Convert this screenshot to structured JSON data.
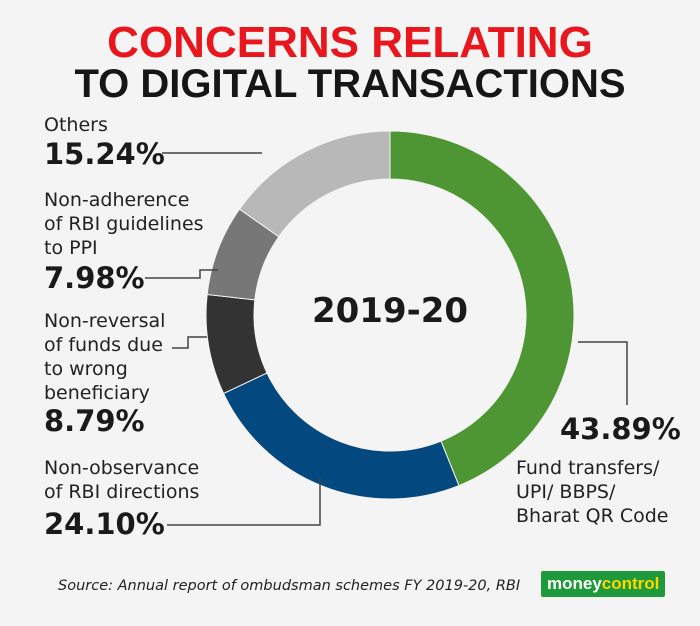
{
  "title_line1": "CONCERNS RELATING",
  "title_line2": "TO DIGITAL TRANSACTIONS",
  "center_label": "2019-20",
  "source": "Source: Annual report of ombudsman schemes FY 2019-20, RBI",
  "brand": {
    "part1": "money",
    "part2": "control"
  },
  "chart_data": {
    "type": "pie",
    "title": "CONCERNS RELATING TO DIGITAL TRANSACTIONS",
    "center_label": "2019-20",
    "slices": [
      {
        "label": "Fund transfers/\nUPI/ BBPS/\nBharat QR Code",
        "value": 43.89,
        "display": "43.89%",
        "color": "#4e9633"
      },
      {
        "label": "Non-observance\nof RBI directions",
        "value": 24.1,
        "display": "24.10%",
        "color": "#03487e"
      },
      {
        "label": "Non-reversal\nof funds due\nto wrong\nbeneficiary",
        "value": 8.79,
        "display": "8.79%",
        "color": "#333333"
      },
      {
        "label": "Non-adherence\nof RBI guidelines\nto PPI",
        "value": 7.98,
        "display": "7.98%",
        "color": "#777777"
      },
      {
        "label": "Others",
        "value": 15.24,
        "display": "15.24%",
        "color": "#b8b8b8"
      }
    ]
  }
}
